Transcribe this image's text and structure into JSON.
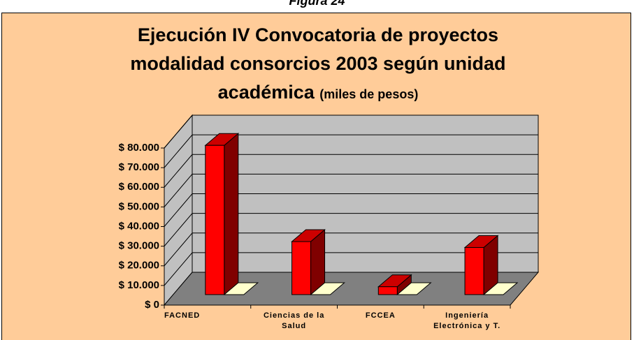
{
  "figure_label": "Figura 24",
  "chart_data": {
    "type": "bar3d",
    "title": "Ejecución IV Convocatoria de proyectos modalidad consorcios 2003 según unidad académica",
    "subtitle": "(miles de pesos)",
    "categories": [
      "FACNED",
      "Ciencias de la Salud",
      "FCCEA",
      "Ingeniería Electrónica y T."
    ],
    "values": [
      76000,
      27000,
      4000,
      24000
    ],
    "color": "#ff0000",
    "ylim": [
      0,
      80000
    ],
    "yticks": [
      {
        "value": 0,
        "label": "$ 0"
      },
      {
        "value": 10000,
        "label": "$ 10.000"
      },
      {
        "value": 20000,
        "label": "$ 20.000"
      },
      {
        "value": 30000,
        "label": "$ 30.000"
      },
      {
        "value": 40000,
        "label": "$ 40.000"
      },
      {
        "value": 50000,
        "label": "$ 50.000"
      },
      {
        "value": 60000,
        "label": "$ 60.000"
      },
      {
        "value": 70000,
        "label": "$ 70.000"
      },
      {
        "value": 80000,
        "label": "$ 80.000"
      }
    ],
    "grid": true
  }
}
